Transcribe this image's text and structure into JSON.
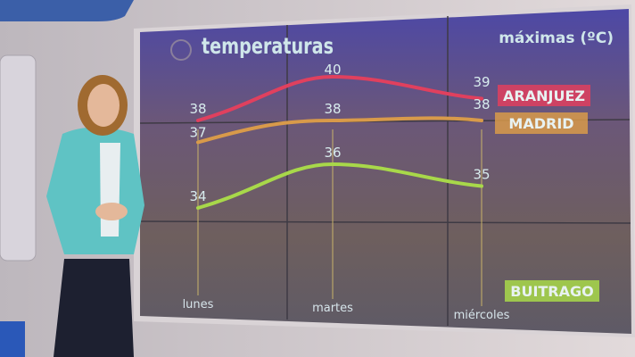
{
  "chart_data": {
    "type": "line",
    "title": "temperaturas",
    "subtitle": "máximas (ºC)",
    "categories": [
      "lunes",
      "martes",
      "miércoles"
    ],
    "ylim": [
      30,
      42
    ],
    "grid": true,
    "legend_placement": "right",
    "series": [
      {
        "name": "ARANJUEZ",
        "values": [
          38,
          40,
          39
        ],
        "color": "#e0405e"
      },
      {
        "name": "MADRID",
        "values": [
          37,
          38,
          38
        ],
        "color": "#d89a4a"
      },
      {
        "name": "BUITRAGO",
        "values": [
          34,
          36,
          35
        ],
        "color": "#a8d84a"
      }
    ]
  },
  "colors": {
    "screen_top": "#4e49a8",
    "screen_bottom": "#6a5a58",
    "text": "#cfe6ea"
  }
}
